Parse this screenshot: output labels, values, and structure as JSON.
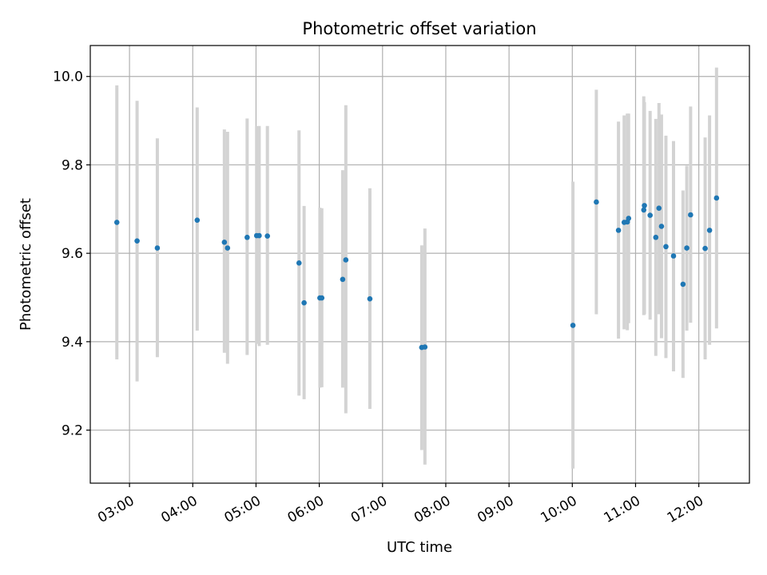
{
  "chart_data": {
    "type": "scatter",
    "title": "Photometric offset variation",
    "xlabel": "UTC time",
    "ylabel": "Photometric offset",
    "x_unit": "hours (UTC)",
    "xlim": [
      2.38,
      12.8
    ],
    "ylim": [
      9.08,
      10.07
    ],
    "grid": true,
    "x_ticks": [
      {
        "value": 3,
        "label": "03:00"
      },
      {
        "value": 4,
        "label": "04:00"
      },
      {
        "value": 5,
        "label": "05:00"
      },
      {
        "value": 6,
        "label": "06:00"
      },
      {
        "value": 7,
        "label": "07:00"
      },
      {
        "value": 8,
        "label": "08:00"
      },
      {
        "value": 9,
        "label": "09:00"
      },
      {
        "value": 10,
        "label": "10:00"
      },
      {
        "value": 11,
        "label": "11:00"
      },
      {
        "value": 12,
        "label": "12:00"
      }
    ],
    "y_ticks": [
      {
        "value": 9.2,
        "label": "9.2"
      },
      {
        "value": 9.4,
        "label": "9.4"
      },
      {
        "value": 9.6,
        "label": "9.6"
      },
      {
        "value": 9.8,
        "label": "9.8"
      },
      {
        "value": 10.0,
        "label": "10.0"
      }
    ],
    "colors": {
      "points": "#1f77b4",
      "error_bars": "#d3d3d3",
      "grid": "#b0b0b0"
    },
    "points": [
      {
        "x": 2.8,
        "y": 9.67,
        "yerr_low": 9.36,
        "yerr_high": 9.98
      },
      {
        "x": 3.12,
        "y": 9.628,
        "yerr_low": 9.31,
        "yerr_high": 9.945
      },
      {
        "x": 3.44,
        "y": 9.612,
        "yerr_low": 9.365,
        "yerr_high": 9.86
      },
      {
        "x": 4.07,
        "y": 9.675,
        "yerr_low": 9.425,
        "yerr_high": 9.93
      },
      {
        "x": 4.5,
        "y": 9.625,
        "yerr_low": 9.375,
        "yerr_high": 9.88
      },
      {
        "x": 4.55,
        "y": 9.612,
        "yerr_low": 9.35,
        "yerr_high": 9.875
      },
      {
        "x": 4.86,
        "y": 9.636,
        "yerr_low": 9.37,
        "yerr_high": 9.905
      },
      {
        "x": 5.01,
        "y": 9.64,
        "yerr_low": 9.395,
        "yerr_high": 9.888
      },
      {
        "x": 5.05,
        "y": 9.64,
        "yerr_low": 9.39,
        "yerr_high": 9.888
      },
      {
        "x": 5.18,
        "y": 9.639,
        "yerr_low": 9.393,
        "yerr_high": 9.888
      },
      {
        "x": 5.68,
        "y": 9.578,
        "yerr_low": 9.278,
        "yerr_high": 9.878
      },
      {
        "x": 5.76,
        "y": 9.488,
        "yerr_low": 9.27,
        "yerr_high": 9.707
      },
      {
        "x": 6.01,
        "y": 9.499,
        "yerr_low": 9.296,
        "yerr_high": 9.703
      },
      {
        "x": 6.04,
        "y": 9.499,
        "yerr_low": 9.297,
        "yerr_high": 9.702
      },
      {
        "x": 6.37,
        "y": 9.541,
        "yerr_low": 9.296,
        "yerr_high": 9.788
      },
      {
        "x": 6.42,
        "y": 9.585,
        "yerr_low": 9.238,
        "yerr_high": 9.935
      },
      {
        "x": 6.8,
        "y": 9.497,
        "yerr_low": 9.248,
        "yerr_high": 9.747
      },
      {
        "x": 7.62,
        "y": 9.387,
        "yerr_low": 9.155,
        "yerr_high": 9.618
      },
      {
        "x": 7.67,
        "y": 9.388,
        "yerr_low": 9.122,
        "yerr_high": 9.656
      },
      {
        "x": 10.01,
        "y": 9.437,
        "yerr_low": 9.113,
        "yerr_high": 9.762
      },
      {
        "x": 10.38,
        "y": 9.716,
        "yerr_low": 9.462,
        "yerr_high": 9.97
      },
      {
        "x": 10.73,
        "y": 9.652,
        "yerr_low": 9.407,
        "yerr_high": 9.898
      },
      {
        "x": 10.82,
        "y": 9.67,
        "yerr_low": 9.428,
        "yerr_high": 9.912
      },
      {
        "x": 10.87,
        "y": 9.671,
        "yerr_low": 9.426,
        "yerr_high": 9.916
      },
      {
        "x": 10.89,
        "y": 9.679,
        "yerr_low": 9.442,
        "yerr_high": 9.916
      },
      {
        "x": 11.13,
        "y": 9.698,
        "yerr_low": 9.46,
        "yerr_high": 9.955
      },
      {
        "x": 11.14,
        "y": 9.708,
        "yerr_low": 9.462,
        "yerr_high": 9.942
      },
      {
        "x": 11.23,
        "y": 9.686,
        "yerr_low": 9.45,
        "yerr_high": 9.922
      },
      {
        "x": 11.32,
        "y": 9.636,
        "yerr_low": 9.368,
        "yerr_high": 9.904
      },
      {
        "x": 11.37,
        "y": 9.702,
        "yerr_low": 9.462,
        "yerr_high": 9.94
      },
      {
        "x": 11.41,
        "y": 9.661,
        "yerr_low": 9.408,
        "yerr_high": 9.914
      },
      {
        "x": 11.48,
        "y": 9.615,
        "yerr_low": 9.363,
        "yerr_high": 9.866
      },
      {
        "x": 11.6,
        "y": 9.594,
        "yerr_low": 9.333,
        "yerr_high": 9.854
      },
      {
        "x": 11.75,
        "y": 9.53,
        "yerr_low": 9.318,
        "yerr_high": 9.742
      },
      {
        "x": 11.81,
        "y": 9.612,
        "yerr_low": 9.425,
        "yerr_high": 9.798
      },
      {
        "x": 11.87,
        "y": 9.687,
        "yerr_low": 9.443,
        "yerr_high": 9.932
      },
      {
        "x": 12.1,
        "y": 9.611,
        "yerr_low": 9.36,
        "yerr_high": 9.862
      },
      {
        "x": 12.17,
        "y": 9.652,
        "yerr_low": 9.393,
        "yerr_high": 9.912
      },
      {
        "x": 12.28,
        "y": 9.725,
        "yerr_low": 9.43,
        "yerr_high": 10.02
      }
    ]
  }
}
